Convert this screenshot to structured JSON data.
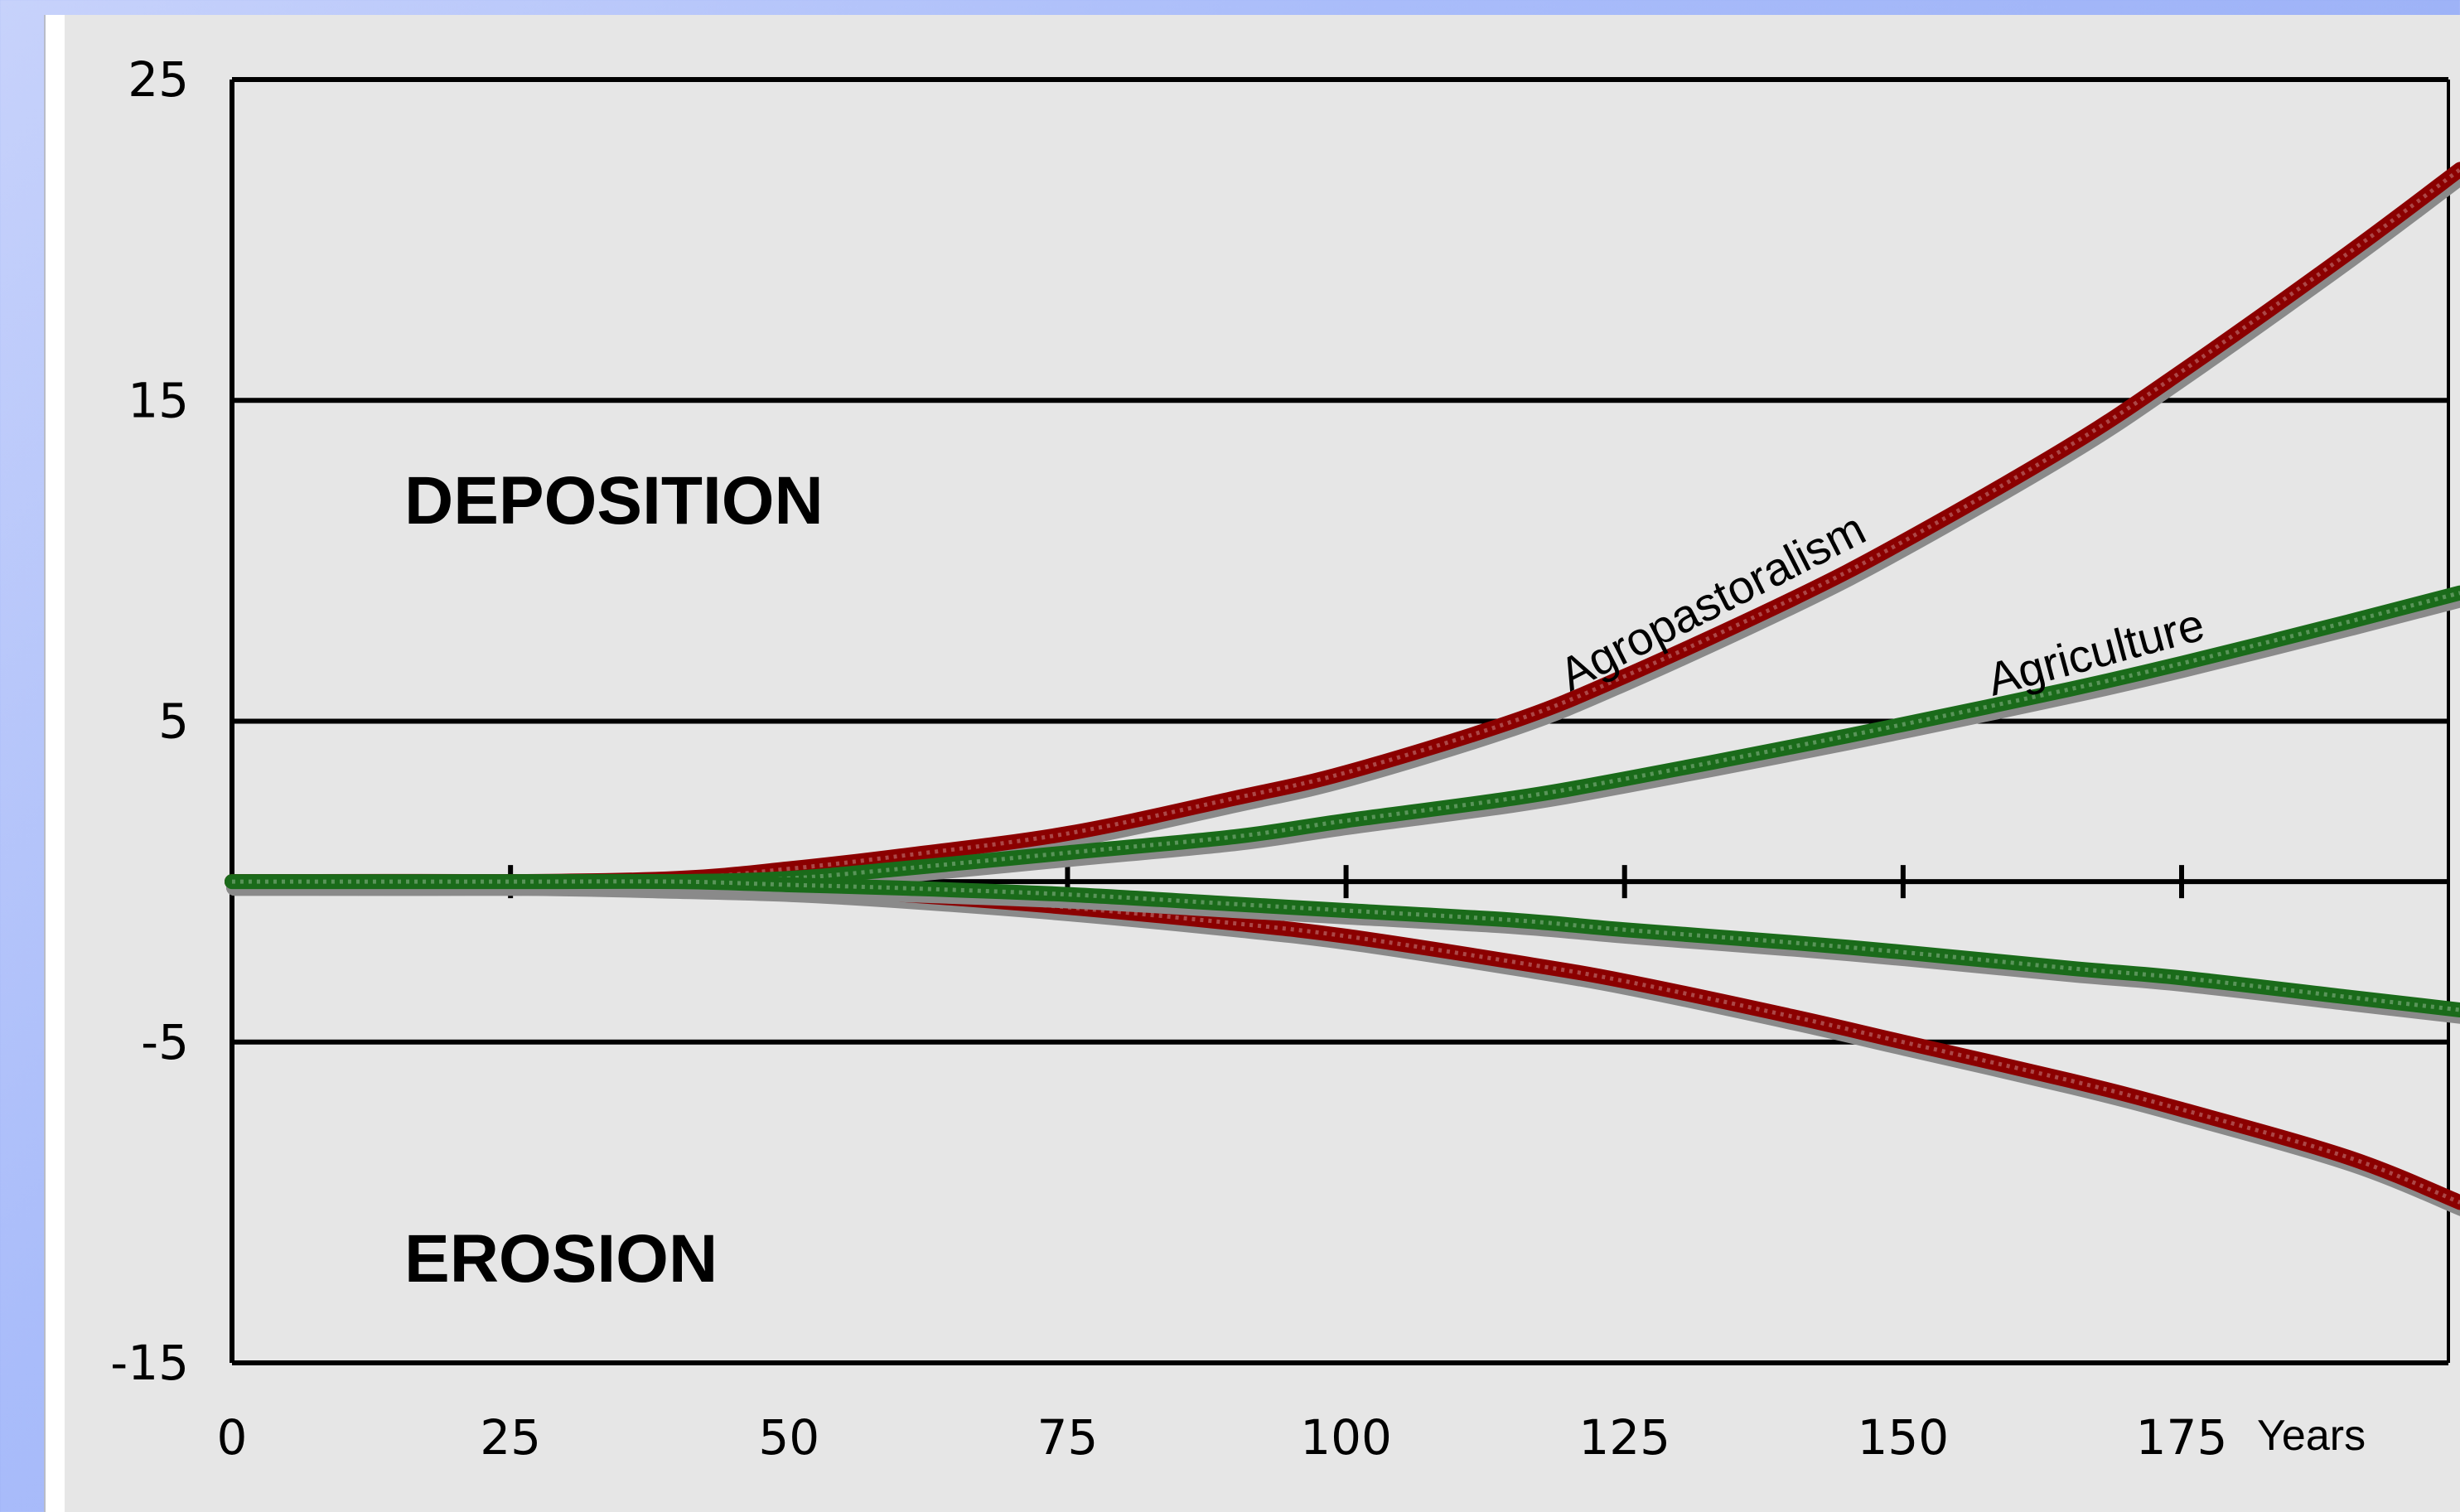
{
  "chart_data": {
    "type": "line",
    "title": "",
    "xlabel": "Years",
    "ylabel": "",
    "xlim": [
      0,
      200
    ],
    "ylim": [
      -15,
      25
    ],
    "x_ticks": [
      "0",
      "25",
      "50",
      "75",
      "100",
      "125",
      "150",
      "175"
    ],
    "y_ticks": [
      "25",
      "15",
      "5",
      "-5",
      "-15"
    ],
    "grid": "horizontal",
    "baseline": 0,
    "regions": {
      "upper": "DEPOSITION",
      "lower": "EROSION"
    },
    "colors": {
      "agropastoralism": "#8b0000",
      "agriculture": "#1a6b1a"
    },
    "series": [
      {
        "name": "Agropastoralism",
        "labeled": true,
        "color": "#8b0000",
        "x": [
          0,
          25,
          40,
          50,
          60,
          75,
          90,
          100,
          115,
          125,
          140,
          150,
          165,
          175,
          190,
          200
        ],
        "y": [
          0,
          0,
          0.1,
          0.4,
          0.8,
          1.5,
          2.6,
          3.4,
          5.0,
          6.4,
          8.8,
          10.6,
          13.6,
          15.9,
          19.6,
          22.2
        ]
      },
      {
        "name": "Agriculture",
        "labeled": true,
        "color": "#1a6b1a",
        "x": [
          0,
          25,
          40,
          50,
          60,
          75,
          90,
          100,
          115,
          125,
          140,
          150,
          165,
          175,
          190,
          200
        ],
        "y": [
          0,
          0,
          0,
          0.1,
          0.4,
          0.9,
          1.4,
          1.9,
          2.6,
          3.2,
          4.2,
          4.9,
          6.0,
          6.8,
          8.1,
          9.0
        ]
      },
      {
        "labeled": false,
        "color": "#8b0000",
        "x": [
          0,
          25,
          40,
          50,
          60,
          75,
          90,
          100,
          115,
          125,
          140,
          150,
          165,
          175,
          190,
          200
        ],
        "y": [
          0,
          0,
          -0.1,
          -0.2,
          -0.4,
          -0.8,
          -1.3,
          -1.7,
          -2.5,
          -3.1,
          -4.2,
          -5.0,
          -6.2,
          -7.1,
          -8.6,
          -10.0
        ]
      },
      {
        "labeled": false,
        "color": "#1a6b1a",
        "x": [
          0,
          25,
          40,
          50,
          60,
          75,
          90,
          100,
          115,
          125,
          140,
          150,
          165,
          175,
          190,
          200
        ],
        "y": [
          0,
          0,
          0,
          -0.1,
          -0.2,
          -0.4,
          -0.7,
          -0.9,
          -1.2,
          -1.5,
          -1.9,
          -2.2,
          -2.7,
          -3.0,
          -3.6,
          -4.0
        ]
      }
    ]
  }
}
